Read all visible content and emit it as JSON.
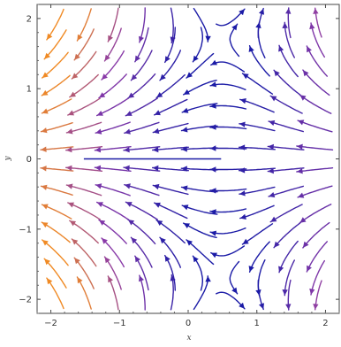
{
  "chart_data": {
    "type": "streamplot",
    "title": "",
    "xlabel": "x",
    "ylabel": "y",
    "xlim": [
      -2.2,
      2.2
    ],
    "ylim": [
      -2.2,
      2.2
    ],
    "xticks": [
      -2,
      -1,
      0,
      1,
      2
    ],
    "yticks": [
      -2,
      -1,
      0,
      1,
      2
    ],
    "xtick_labels": [
      "−2",
      "−1",
      "0",
      "1",
      "2"
    ],
    "ytick_labels": [
      "−2",
      "−1",
      "0",
      "1",
      "2"
    ],
    "grid": false,
    "legend": "none",
    "stagnation_point": [
      0.5,
      0
    ],
    "color_scale": {
      "low_speed": "#1a1aa6",
      "mid_speed": "#8a3aa8",
      "high_speed": "#f08a24"
    }
  }
}
